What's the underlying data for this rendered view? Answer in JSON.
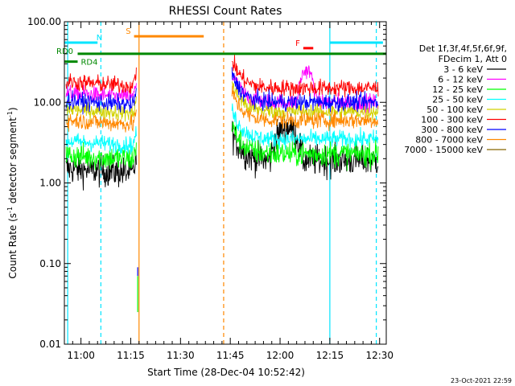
{
  "chart_data": {
    "type": "line",
    "title": "RHESSI Count Rates",
    "xlabel": "Start Time (28-Dec-04 10:52:42)",
    "ylabel": "Count Rate (s",
    "ylabel_sup": "-1",
    "ylabel_rest": " detector segment",
    "ylabel_sup2": "-1",
    "ylabel_end": ")",
    "y_scale": "log",
    "ylim": [
      0.01,
      100
    ],
    "xlim_minutes": [
      655,
      752
    ],
    "x_ticks": [
      {
        "label": "11:00",
        "minute": 660
      },
      {
        "label": "11:15",
        "minute": 675
      },
      {
        "label": "11:30",
        "minute": 690
      },
      {
        "label": "11:45",
        "minute": 705
      },
      {
        "label": "12:00",
        "minute": 720
      },
      {
        "label": "12:15",
        "minute": 735
      },
      {
        "label": "12:30",
        "minute": 750
      }
    ],
    "y_ticks": [
      {
        "label": "100.00",
        "value": 100
      },
      {
        "label": "10.00",
        "value": 10
      },
      {
        "label": "1.00",
        "value": 1
      },
      {
        "label": "0.10",
        "value": 0.1
      },
      {
        "label": "0.01",
        "value": 0.01
      }
    ],
    "legend_header": [
      "Det 1f,3f,4f,5f,6f,9f,",
      "FDecim 1, Att 0"
    ],
    "legend_placement": "right",
    "series": [
      {
        "name": "3 - 6 keV",
        "color": "#000000",
        "pre": 1.5,
        "post": 1.9
      },
      {
        "name": "6 - 12 keV",
        "color": "#ff00ff",
        "pre": 13,
        "post": 10
      },
      {
        "name": "12 - 25 keV",
        "color": "#00ff00",
        "pre": 2.2,
        "post": 2.3
      },
      {
        "name": "25 - 50 keV",
        "color": "#00ffff",
        "pre": 3.3,
        "post": 3.5
      },
      {
        "name": "50 - 100 keV",
        "color": "#d2d200",
        "pre": 8.3,
        "post": 7.7
      },
      {
        "name": "100 - 300 keV",
        "color": "#ff0000",
        "pre": 18,
        "post": 15
      },
      {
        "name": "300 - 800 keV",
        "color": "#0000ff",
        "pre": 10.5,
        "post": 10
      },
      {
        "name": "800 - 7000 keV",
        "color": "#ff8800",
        "pre": 6.0,
        "post": 6.0
      },
      {
        "name": "7000 - 15000 keV",
        "color": "#886600",
        "pre": 0,
        "post": 0
      }
    ],
    "flag_bars": [
      {
        "label": "N",
        "color": "#00e5ff",
        "value": 55,
        "start": 655,
        "end": 665
      },
      {
        "label": "N",
        "color": "#00e5ff",
        "value": 55,
        "start": 735,
        "end": 751
      },
      {
        "label": "S",
        "color": "#ff8800",
        "value": 66,
        "start": 676,
        "end": 697
      },
      {
        "label": "F",
        "color": "#ff0000",
        "value": 47,
        "start": 727,
        "end": 730
      },
      {
        "label": "RD0",
        "color": "#008800",
        "value": 40,
        "start": 659,
        "end": 752
      },
      {
        "label": "RD4",
        "color": "#008800",
        "value": 32,
        "start": 655,
        "end": 659
      }
    ],
    "vertical_lines": [
      {
        "minute": 656,
        "color": "#00e5ff",
        "style": "solid"
      },
      {
        "minute": 666,
        "color": "#00e5ff",
        "style": "dashed"
      },
      {
        "minute": 677.5,
        "color": "#ff8800",
        "style": "solid"
      },
      {
        "minute": 703,
        "color": "#ff8800",
        "style": "dashed"
      },
      {
        "minute": 735,
        "color": "#00e5ff",
        "style": "solid"
      },
      {
        "minute": 749,
        "color": "#00e5ff",
        "style": "dashed"
      }
    ],
    "grid": false
  },
  "footer": {
    "timestamp": "23-Oct-2021 22:59"
  }
}
